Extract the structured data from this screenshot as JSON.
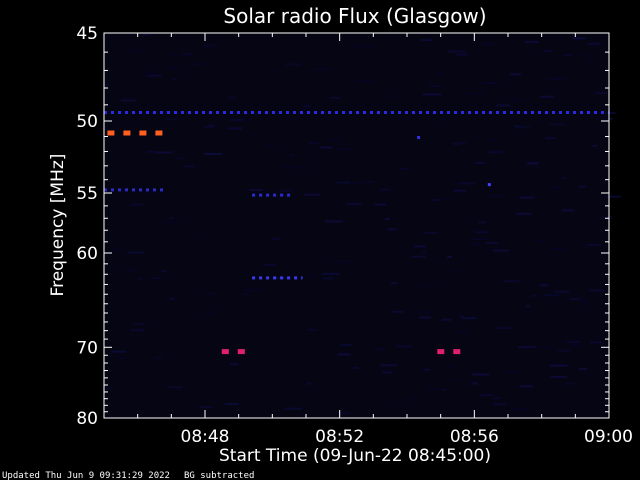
{
  "chart_data": {
    "type": "heatmap",
    "title": "Solar radio Flux (Glasgow)",
    "xlabel": "Start Time (09-Jun-22 08:45:00)",
    "ylabel": "Frequency [MHz]",
    "x_tick_labels": [
      "08:48",
      "08:52",
      "08:56",
      "09:00"
    ],
    "x_tick_values_minutes": [
      3,
      7,
      11,
      15
    ],
    "xlim_minutes": [
      0,
      15
    ],
    "y_tick_labels": [
      "45",
      "50",
      "55",
      "60",
      "70",
      "80"
    ],
    "y_tick_values": [
      45,
      50,
      55,
      60,
      70,
      80
    ],
    "ylim": [
      45,
      80
    ],
    "y_scale": "reciprocal",
    "grid": false,
    "features": [
      {
        "kind": "band",
        "freq": 49.5,
        "t_start": 0,
        "t_end": 15,
        "color": "#2a2ae0",
        "intensity": "low"
      },
      {
        "kind": "band",
        "freq": 50.8,
        "t_start": 0.1,
        "t_end": 1.8,
        "color": "#ff6020",
        "intensity": "high"
      },
      {
        "kind": "band",
        "freq": 54.8,
        "t_start": 0,
        "t_end": 1.8,
        "color": "#2a2ac8",
        "intensity": "low"
      },
      {
        "kind": "band",
        "freq": 55.2,
        "t_start": 4.4,
        "t_end": 5.6,
        "color": "#2a2ad0",
        "intensity": "low"
      },
      {
        "kind": "band",
        "freq": 62.4,
        "t_start": 4.4,
        "t_end": 5.9,
        "color": "#3a3af0",
        "intensity": "medium"
      },
      {
        "kind": "band",
        "freq": 70.6,
        "t_start": 3.5,
        "t_end": 4.2,
        "color": "#e0206a",
        "intensity": "high"
      },
      {
        "kind": "band",
        "freq": 70.6,
        "t_start": 9.9,
        "t_end": 10.7,
        "color": "#e0206a",
        "intensity": "high"
      },
      {
        "kind": "spot",
        "freq": 51.1,
        "t_start": 9.3,
        "t_end": 9.4,
        "color": "#3030e0",
        "intensity": "low"
      },
      {
        "kind": "spot",
        "freq": 54.4,
        "t_start": 11.4,
        "t_end": 11.5,
        "color": "#4040ff",
        "intensity": "medium"
      }
    ]
  },
  "footer": {
    "updated": "Updated Thu Jun  9 09:31:29 2022",
    "note": "BG subtracted"
  },
  "colors": {
    "background": "#000000",
    "plot_background": "#050514",
    "axis": "#ffffff",
    "high": "#ff6020",
    "low": "#2a2ae0"
  }
}
